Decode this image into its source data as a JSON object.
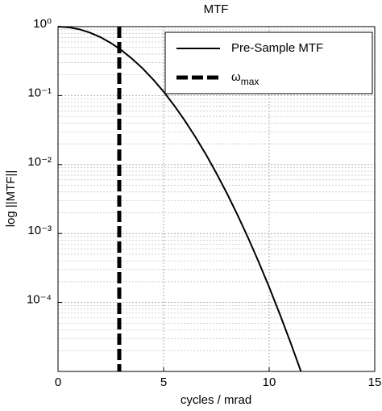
{
  "chart_data": {
    "type": "line",
    "title": "MTF",
    "xlabel": "cycles / mrad",
    "ylabel": "log ||MTF||",
    "log_y": true,
    "grid": true,
    "legend": "upper right",
    "xlim": [
      0,
      15
    ],
    "xticks": [
      0,
      5,
      10,
      15
    ],
    "ylim": [
      1e-05,
      1
    ],
    "yticks": [
      {
        "value": 1,
        "label": "10⁰"
      },
      {
        "value": 0.1,
        "label": "10⁻¹"
      },
      {
        "value": 0.01,
        "label": "10⁻²"
      },
      {
        "value": 0.001,
        "label": "10⁻³"
      },
      {
        "value": 0.0001,
        "label": "10⁻⁴"
      }
    ],
    "series": [
      {
        "name": "Pre-Sample MTF",
        "color": "#000000",
        "style": "solid",
        "x": [
          0,
          0.5,
          1,
          1.5,
          2,
          2.5,
          3,
          3.5,
          4,
          4.5,
          5,
          5.5,
          6,
          6.5,
          7,
          7.5,
          8,
          8.5,
          9,
          9.5,
          10,
          10.5,
          11,
          11.5
        ],
        "values": [
          1,
          0.978,
          0.917,
          0.822,
          0.706,
          0.58,
          0.457,
          0.344,
          0.249,
          0.172,
          0.114,
          0.072,
          0.0436,
          0.0253,
          0.0141,
          0.00749,
          0.00382,
          0.00186,
          0.00087,
          0.000389,
          0.000167,
          6.82e-05,
          2.68e-05,
          1.01e-05
        ]
      },
      {
        "name": "ωmax",
        "color": "#000000",
        "style": "dashed",
        "x": [
          2.9,
          2.9
        ],
        "values": [
          1,
          1e-05
        ]
      }
    ]
  }
}
